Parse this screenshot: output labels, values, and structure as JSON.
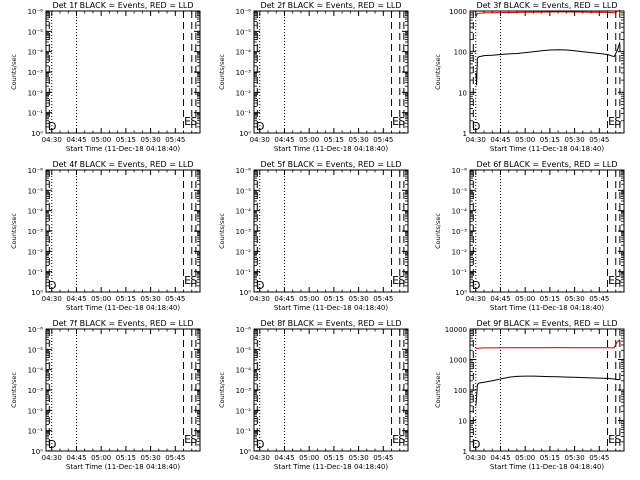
{
  "chart_data": [
    {
      "type": "line",
      "title": "Det 1f BLACK = Events, RED = LLD",
      "ylabel": "Counts/sec",
      "xlabel": "Start Time (11-Dec-18 04:18:40)",
      "x_ticks": [
        "04:30",
        "04:45",
        "05:00",
        "05:15",
        "05:30",
        "05:45"
      ],
      "y_scale": "log",
      "y_ticks": [
        "10⁰",
        "10⁻¹",
        "10⁻²",
        "10⁻³",
        "10⁻⁴",
        "10⁻⁵",
        "10⁻⁶"
      ],
      "markers": [
        "D",
        "E",
        "S"
      ],
      "series": []
    },
    {
      "type": "line",
      "title": "Det 2f BLACK = Events, RED = LLD",
      "ylabel": "Counts/sec",
      "xlabel": "Start Time (11-Dec-18 04:18:40)",
      "x_ticks": [
        "04:30",
        "04:45",
        "05:00",
        "05:15",
        "05:30",
        "05:45"
      ],
      "y_scale": "log",
      "y_ticks": [
        "10⁰",
        "10⁻¹",
        "10⁻²",
        "10⁻³",
        "10⁻⁴",
        "10⁻⁵",
        "10⁻⁶"
      ],
      "markers": [
        "D",
        "E",
        "S"
      ],
      "series": []
    },
    {
      "type": "line",
      "title": "Det 3f BLACK = Events, RED = LLD",
      "ylabel": "Counts/sec",
      "xlabel": "Start Time (11-Dec-18 04:18:40)",
      "x_ticks": [
        "04:30",
        "04:45",
        "05:00",
        "05:15",
        "05:30",
        "05:45"
      ],
      "y_scale": "log",
      "y_ticks": [
        "1",
        "10",
        "100",
        "1000"
      ],
      "ylim": [
        1,
        1000
      ],
      "markers": [
        "D",
        "E",
        "S"
      ],
      "series": [
        {
          "name": "Events",
          "color": "#000000",
          "x": [
            0,
            0.5,
            1,
            2,
            5,
            10,
            15,
            20,
            25,
            30,
            35,
            40,
            45,
            50,
            55,
            60,
            65,
            70,
            75,
            80,
            84,
            86,
            87.5
          ],
          "y": [
            30,
            15,
            70,
            75,
            80,
            82,
            85,
            88,
            90,
            95,
            100,
            105,
            110,
            112,
            110,
            105,
            100,
            95,
            90,
            85,
            75,
            110,
            170
          ]
        },
        {
          "name": "LLD",
          "color": "#cc0000",
          "x": [
            0,
            1,
            5,
            10,
            20,
            30,
            40,
            50,
            60,
            70,
            80,
            85,
            86,
            87.5
          ],
          "y": [
            700,
            880,
            900,
            910,
            920,
            930,
            940,
            950,
            945,
            935,
            925,
            900,
            1000,
            1050
          ]
        }
      ]
    },
    {
      "type": "line",
      "title": "Det 4f BLACK = Events, RED = LLD",
      "ylabel": "Counts/sec",
      "xlabel": "Start Time (11-Dec-18 04:18:40)",
      "x_ticks": [
        "04:30",
        "04:45",
        "05:00",
        "05:15",
        "05:30",
        "05:45"
      ],
      "y_scale": "log",
      "y_ticks": [
        "10⁰",
        "10⁻¹",
        "10⁻²",
        "10⁻³",
        "10⁻⁴",
        "10⁻⁵",
        "10⁻⁶"
      ],
      "markers": [
        "D",
        "E",
        "S"
      ],
      "series": []
    },
    {
      "type": "line",
      "title": "Det 5f BLACK = Events, RED = LLD",
      "ylabel": "Counts/sec",
      "xlabel": "Start Time (11-Dec-18 04:18:40)",
      "x_ticks": [
        "04:30",
        "04:45",
        "05:00",
        "05:15",
        "05:30",
        "05:45"
      ],
      "y_scale": "log",
      "y_ticks": [
        "10⁰",
        "10⁻¹",
        "10⁻²",
        "10⁻³",
        "10⁻⁴",
        "10⁻⁵",
        "10⁻⁶"
      ],
      "markers": [
        "D",
        "E",
        "S"
      ],
      "series": []
    },
    {
      "type": "line",
      "title": "Det 6f BLACK = Events, RED = LLD",
      "ylabel": "Counts/sec",
      "xlabel": "Start Time (11-Dec-18 04:18:40)",
      "x_ticks": [
        "04:30",
        "04:45",
        "05:00",
        "05:15",
        "05:30",
        "05:45"
      ],
      "y_scale": "log",
      "y_ticks": [
        "10⁰",
        "10⁻¹",
        "10⁻²",
        "10⁻³",
        "10⁻⁴",
        "10⁻⁵",
        "10⁻⁶"
      ],
      "markers": [
        "D",
        "E",
        "S"
      ],
      "series": []
    },
    {
      "type": "line",
      "title": "Det 7f BLACK = Events, RED = LLD",
      "ylabel": "Counts/sec",
      "xlabel": "Start Time (11-Dec-18 04:18:40)",
      "x_ticks": [
        "04:30",
        "04:45",
        "05:00",
        "05:15",
        "05:30",
        "05:45"
      ],
      "y_scale": "log",
      "y_ticks": [
        "10⁰",
        "10⁻¹",
        "10⁻²",
        "10⁻³",
        "10⁻⁴",
        "10⁻⁵",
        "10⁻⁶"
      ],
      "markers": [
        "D",
        "E",
        "S"
      ],
      "series": []
    },
    {
      "type": "line",
      "title": "Det 8f BLACK = Events, RED = LLD",
      "ylabel": "Counts/sec",
      "xlabel": "Start Time (11-Dec-18 04:18:40)",
      "x_ticks": [
        "04:30",
        "04:45",
        "05:00",
        "05:15",
        "05:30",
        "05:45"
      ],
      "y_scale": "log",
      "y_ticks": [
        "10⁰",
        "10⁻¹",
        "10⁻²",
        "10⁻³",
        "10⁻⁴",
        "10⁻⁵",
        "10⁻⁶"
      ],
      "markers": [
        "D",
        "E",
        "S"
      ],
      "series": []
    },
    {
      "type": "line",
      "title": "Det 9f BLACK = Events, RED = LLD",
      "ylabel": "Counts/sec",
      "xlabel": "Start Time (11-Dec-18 04:18:40)",
      "x_ticks": [
        "04:30",
        "04:45",
        "05:00",
        "05:15",
        "05:30",
        "05:45"
      ],
      "y_scale": "log",
      "y_ticks": [
        "1",
        "10",
        "100",
        "1000",
        "10000"
      ],
      "ylim": [
        1,
        10000
      ],
      "markers": [
        "D",
        "E",
        "S"
      ],
      "series": [
        {
          "name": "Events",
          "color": "#000000",
          "x": [
            0,
            0.5,
            1,
            2,
            5,
            10,
            15,
            20,
            25,
            30,
            35,
            40,
            45,
            50,
            55,
            60,
            65,
            70,
            75,
            80,
            84,
            86,
            87.5
          ],
          "y": [
            30,
            60,
            150,
            170,
            180,
            200,
            230,
            260,
            280,
            285,
            285,
            280,
            275,
            270,
            265,
            260,
            255,
            250,
            245,
            240,
            230,
            220,
            220
          ]
        },
        {
          "name": "LLD",
          "color": "#cc0000",
          "x": [
            0,
            1,
            5,
            10,
            20,
            30,
            40,
            50,
            60,
            70,
            80,
            84,
            85.5,
            87.5
          ],
          "y": [
            2300,
            2350,
            2400,
            2400,
            2420,
            2430,
            2440,
            2450,
            2440,
            2430,
            2430,
            2400,
            3500,
            4500
          ]
        }
      ]
    }
  ]
}
